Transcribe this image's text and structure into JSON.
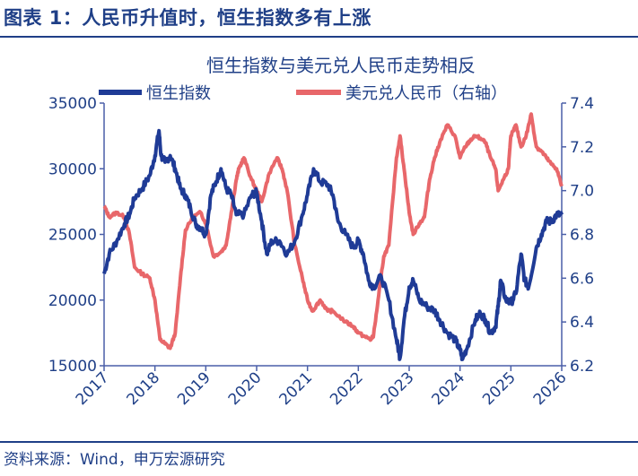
{
  "figure_title": "图表 1：人民币升值时，恒生指数多有上涨",
  "source_note": "资料来源：Wind，申万宏源研究",
  "colors": {
    "hsi": "#1f3b96",
    "usdcny": "#e8676a",
    "text": "#1f3f87",
    "axis": "#4a5fa8"
  },
  "chart_data": {
    "type": "line",
    "title": "恒生指数与美元兑人民币走势相反",
    "xlabel": "",
    "legend_position": "top",
    "grid": false,
    "x_ticks": [
      "2017",
      "2018",
      "2019",
      "2020",
      "2021",
      "2022",
      "2023",
      "2024",
      "2025",
      "2026"
    ],
    "xlim": [
      2017.0,
      2026.0
    ],
    "y_left": {
      "ylim": [
        15000,
        35000
      ],
      "ticks": [
        "15000",
        "20000",
        "25000",
        "30000",
        "35000"
      ]
    },
    "y_right": {
      "ylim": [
        6.2,
        7.4
      ],
      "ticks": [
        "6.2",
        "6.4",
        "6.6",
        "6.8",
        "7.0",
        "7.2",
        "7.4"
      ]
    },
    "series": [
      {
        "name": "恒生指数",
        "axis": "left",
        "x": [
          2017.0,
          2017.1,
          2017.25,
          2017.4,
          2017.5,
          2017.6,
          2017.75,
          2017.9,
          2018.0,
          2018.08,
          2018.12,
          2018.2,
          2018.3,
          2018.4,
          2018.5,
          2018.6,
          2018.7,
          2018.8,
          2018.9,
          2019.0,
          2019.1,
          2019.2,
          2019.3,
          2019.4,
          2019.5,
          2019.6,
          2019.75,
          2019.9,
          2020.0,
          2020.1,
          2020.2,
          2020.3,
          2020.45,
          2020.6,
          2020.75,
          2020.9,
          2021.0,
          2021.12,
          2021.25,
          2021.4,
          2021.5,
          2021.6,
          2021.75,
          2021.9,
          2022.0,
          2022.1,
          2022.2,
          2022.3,
          2022.45,
          2022.6,
          2022.75,
          2022.82,
          2022.9,
          2023.0,
          2023.08,
          2023.2,
          2023.35,
          2023.5,
          2023.6,
          2023.75,
          2023.9,
          2024.0,
          2024.05,
          2024.15,
          2024.3,
          2024.4,
          2024.5,
          2024.6,
          2024.7,
          2024.75,
          2024.8,
          2024.9,
          2025.0,
          2025.1,
          2025.2,
          2025.27,
          2025.35,
          2025.5,
          2025.6,
          2025.7,
          2025.8,
          2025.9,
          2026.0
        ],
        "values": [
          22000,
          23500,
          24500,
          25800,
          26500,
          27800,
          28500,
          29500,
          31000,
          32900,
          31000,
          30500,
          31000,
          30000,
          28500,
          28000,
          27000,
          25800,
          25500,
          25000,
          28000,
          29000,
          30000,
          28500,
          28000,
          26500,
          26500,
          28000,
          28200,
          26000,
          23500,
          24500,
          24500,
          23500,
          24500,
          26500,
          28000,
          30000,
          29000,
          28800,
          28000,
          26000,
          25000,
          24000,
          24500,
          23500,
          21500,
          21000,
          21800,
          20000,
          17000,
          15600,
          18500,
          21000,
          21500,
          20000,
          19500,
          19200,
          18500,
          17500,
          17000,
          16200,
          15500,
          16500,
          18500,
          19000,
          18500,
          17500,
          18000,
          19500,
          21500,
          20000,
          19800,
          20500,
          23500,
          21500,
          21000,
          24000,
          25000,
          26000,
          26000,
          26500,
          26500
        ]
      },
      {
        "name": "美元兑人民币（右轴）",
        "axis": "right",
        "x": [
          2017.0,
          2017.1,
          2017.25,
          2017.4,
          2017.5,
          2017.6,
          2017.75,
          2017.9,
          2018.0,
          2018.1,
          2018.2,
          2018.3,
          2018.4,
          2018.5,
          2018.6,
          2018.75,
          2018.9,
          2019.0,
          2019.15,
          2019.3,
          2019.4,
          2019.5,
          2019.6,
          2019.65,
          2019.75,
          2019.9,
          2020.0,
          2020.1,
          2020.25,
          2020.4,
          2020.5,
          2020.6,
          2020.75,
          2020.9,
          2021.0,
          2021.1,
          2021.25,
          2021.4,
          2021.5,
          2021.75,
          2021.9,
          2022.0,
          2022.15,
          2022.25,
          2022.3,
          2022.4,
          2022.5,
          2022.6,
          2022.75,
          2022.82,
          2022.9,
          2023.0,
          2023.08,
          2023.2,
          2023.3,
          2023.4,
          2023.5,
          2023.6,
          2023.75,
          2023.9,
          2024.0,
          2024.1,
          2024.2,
          2024.3,
          2024.4,
          2024.5,
          2024.6,
          2024.7,
          2024.75,
          2024.85,
          2024.95,
          2025.0,
          2025.1,
          2025.2,
          2025.3,
          2025.4,
          2025.5,
          2025.6,
          2025.7,
          2025.8,
          2025.9,
          2026.0
        ],
        "values": [
          6.93,
          6.88,
          6.9,
          6.88,
          6.8,
          6.65,
          6.62,
          6.6,
          6.5,
          6.32,
          6.3,
          6.28,
          6.35,
          6.6,
          6.82,
          6.88,
          6.9,
          6.85,
          6.7,
          6.72,
          6.75,
          6.9,
          7.05,
          7.1,
          7.15,
          7.05,
          7.0,
          6.95,
          7.08,
          7.15,
          7.1,
          7.0,
          6.75,
          6.6,
          6.5,
          6.45,
          6.5,
          6.45,
          6.45,
          6.4,
          6.38,
          6.35,
          6.33,
          6.32,
          6.34,
          6.52,
          6.7,
          6.75,
          7.15,
          7.25,
          7.1,
          6.9,
          6.8,
          6.85,
          6.88,
          7.05,
          7.15,
          7.22,
          7.3,
          7.25,
          7.15,
          7.2,
          7.23,
          7.25,
          7.24,
          7.22,
          7.15,
          7.1,
          7.0,
          7.05,
          7.1,
          7.25,
          7.3,
          7.2,
          7.25,
          7.35,
          7.2,
          7.18,
          7.15,
          7.12,
          7.1,
          7.02
        ]
      }
    ]
  }
}
